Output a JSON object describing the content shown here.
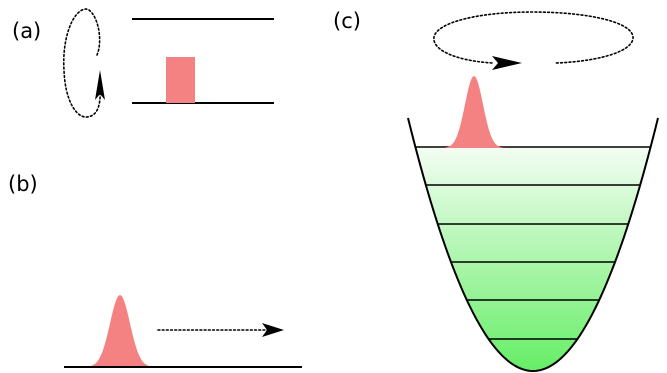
{
  "panels": {
    "a": {
      "label": "(a)"
    },
    "b": {
      "label": "(b)"
    },
    "c": {
      "label": "(c)"
    }
  },
  "colors": {
    "packet": "#f58282",
    "line": "#000000",
    "well_gradient_top": "#f4fdf4",
    "well_gradient_bottom": "#66ee66"
  },
  "icons": {
    "a": [
      "loop-arrow-icon",
      "packet-rect-icon"
    ],
    "b": [
      "gaussian-packet-icon",
      "right-arrow-icon"
    ],
    "c": [
      "orbit-arrow-icon",
      "gaussian-packet-icon",
      "harmonic-well-icon"
    ]
  },
  "diagram": {
    "harmonic_well_level_count": 6
  }
}
